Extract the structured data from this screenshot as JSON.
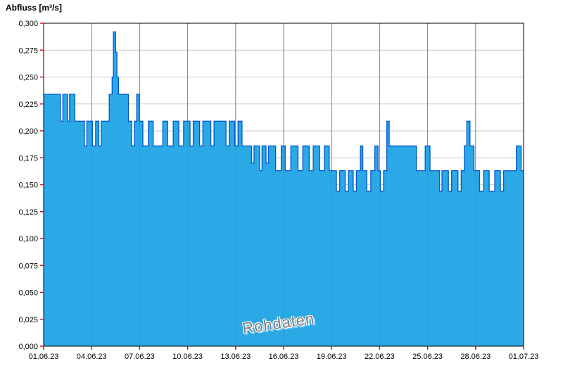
{
  "chart_data": {
    "type": "area",
    "title": "",
    "ylabel": "Abfluss [m³/s]",
    "xlabel": "",
    "watermark": "Rohdaten",
    "ylim": [
      0.0,
      0.3
    ],
    "xlim_days": [
      0,
      30
    ],
    "y_tick_step": 0.025,
    "y_tick_labels": [
      "0,000",
      "0,025",
      "0,050",
      "0,075",
      "0,100",
      "0,125",
      "0,150",
      "0,175",
      "0,200",
      "0,225",
      "0,250",
      "0,275",
      "0,300"
    ],
    "x_tick_labels": [
      "01.06.23",
      "04.06.23",
      "07.06.23",
      "10.06.23",
      "13.06.23",
      "16.06.23",
      "19.06.23",
      "22.06.23",
      "25.06.23",
      "28.06.23",
      "01.07.23"
    ],
    "grid": true,
    "legend": "none",
    "colors": {
      "fill": "#2aa9e6",
      "line": "#0055cc",
      "h_grid": "#c9c9c9",
      "v_grid": "#808080",
      "tick": "#e00000",
      "border": "#000000",
      "text": "#000000",
      "background": "#ffffff"
    },
    "series": [
      {
        "name": "Rohdaten",
        "step": true,
        "points": [
          [
            0.0,
            0.234
          ],
          [
            1.05,
            0.209
          ],
          [
            1.2,
            0.234
          ],
          [
            1.5,
            0.209
          ],
          [
            1.62,
            0.234
          ],
          [
            1.95,
            0.209
          ],
          [
            2.55,
            0.186
          ],
          [
            2.7,
            0.209
          ],
          [
            3.05,
            0.186
          ],
          [
            3.25,
            0.209
          ],
          [
            3.45,
            0.186
          ],
          [
            3.6,
            0.209
          ],
          [
            4.1,
            0.234
          ],
          [
            4.28,
            0.25
          ],
          [
            4.36,
            0.292
          ],
          [
            4.5,
            0.273
          ],
          [
            4.58,
            0.25
          ],
          [
            4.68,
            0.234
          ],
          [
            5.3,
            0.209
          ],
          [
            5.5,
            0.186
          ],
          [
            5.68,
            0.209
          ],
          [
            5.82,
            0.234
          ],
          [
            5.98,
            0.209
          ],
          [
            6.2,
            0.186
          ],
          [
            6.55,
            0.209
          ],
          [
            6.85,
            0.186
          ],
          [
            7.45,
            0.209
          ],
          [
            7.75,
            0.186
          ],
          [
            8.1,
            0.209
          ],
          [
            8.45,
            0.186
          ],
          [
            8.75,
            0.209
          ],
          [
            9.15,
            0.186
          ],
          [
            9.35,
            0.209
          ],
          [
            9.75,
            0.186
          ],
          [
            9.95,
            0.209
          ],
          [
            10.45,
            0.186
          ],
          [
            10.65,
            0.209
          ],
          [
            11.4,
            0.186
          ],
          [
            11.6,
            0.209
          ],
          [
            11.95,
            0.186
          ],
          [
            12.15,
            0.209
          ],
          [
            12.4,
            0.186
          ],
          [
            13.0,
            0.17
          ],
          [
            13.15,
            0.186
          ],
          [
            13.5,
            0.163
          ],
          [
            13.65,
            0.186
          ],
          [
            13.9,
            0.17
          ],
          [
            14.05,
            0.186
          ],
          [
            14.5,
            0.163
          ],
          [
            14.85,
            0.186
          ],
          [
            15.1,
            0.163
          ],
          [
            15.45,
            0.186
          ],
          [
            15.9,
            0.163
          ],
          [
            16.2,
            0.186
          ],
          [
            16.6,
            0.163
          ],
          [
            16.85,
            0.186
          ],
          [
            17.25,
            0.163
          ],
          [
            17.55,
            0.186
          ],
          [
            17.85,
            0.163
          ],
          [
            18.3,
            0.144
          ],
          [
            18.5,
            0.163
          ],
          [
            18.85,
            0.144
          ],
          [
            19.05,
            0.163
          ],
          [
            19.35,
            0.144
          ],
          [
            19.55,
            0.163
          ],
          [
            19.8,
            0.186
          ],
          [
            19.95,
            0.163
          ],
          [
            20.2,
            0.144
          ],
          [
            20.45,
            0.163
          ],
          [
            20.7,
            0.186
          ],
          [
            20.9,
            0.163
          ],
          [
            21.05,
            0.144
          ],
          [
            21.25,
            0.163
          ],
          [
            21.45,
            0.209
          ],
          [
            21.6,
            0.186
          ],
          [
            23.3,
            0.163
          ],
          [
            23.85,
            0.186
          ],
          [
            24.15,
            0.163
          ],
          [
            24.75,
            0.144
          ],
          [
            24.9,
            0.163
          ],
          [
            25.3,
            0.144
          ],
          [
            25.5,
            0.163
          ],
          [
            25.9,
            0.144
          ],
          [
            26.1,
            0.163
          ],
          [
            26.3,
            0.186
          ],
          [
            26.45,
            0.209
          ],
          [
            26.65,
            0.186
          ],
          [
            26.9,
            0.163
          ],
          [
            27.25,
            0.144
          ],
          [
            27.5,
            0.163
          ],
          [
            27.85,
            0.144
          ],
          [
            28.2,
            0.163
          ],
          [
            28.55,
            0.144
          ],
          [
            28.75,
            0.163
          ],
          [
            29.55,
            0.186
          ],
          [
            29.85,
            0.163
          ],
          [
            30.0,
            0.163
          ]
        ]
      }
    ]
  }
}
